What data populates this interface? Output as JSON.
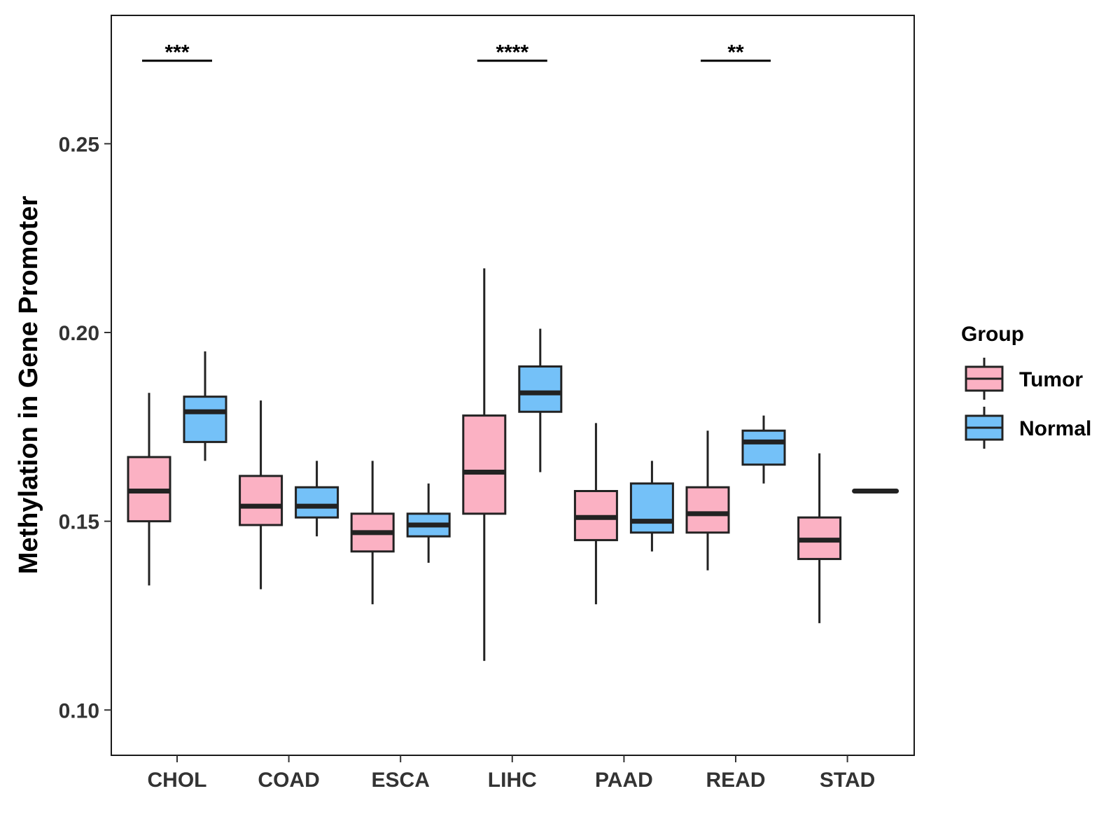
{
  "chart_data": {
    "type": "boxplot",
    "title": "",
    "xlabel": "",
    "ylabel": "Methylation in Gene Promoter",
    "ylim": [
      0.088,
      0.284
    ],
    "yticks": [
      "0.10",
      "0.15",
      "0.20",
      "0.25"
    ],
    "categories": [
      "CHOL",
      "COAD",
      "ESCA",
      "LIHC",
      "PAAD",
      "READ",
      "STAD"
    ],
    "legend": {
      "title": "Group",
      "entries": [
        "Tumor",
        "Normal"
      ],
      "position": "right"
    },
    "colors": {
      "Tumor": "#fbb1c3",
      "Normal": "#74c1f8",
      "stroke": "#222222"
    },
    "series": [
      {
        "name": "Tumor",
        "boxes": [
          {
            "min": 0.133,
            "q1": 0.15,
            "median": 0.158,
            "q3": 0.167,
            "max": 0.184
          },
          {
            "min": 0.132,
            "q1": 0.149,
            "median": 0.154,
            "q3": 0.162,
            "max": 0.182
          },
          {
            "min": 0.128,
            "q1": 0.142,
            "median": 0.147,
            "q3": 0.152,
            "max": 0.166
          },
          {
            "min": 0.113,
            "q1": 0.152,
            "median": 0.163,
            "q3": 0.178,
            "max": 0.217
          },
          {
            "min": 0.128,
            "q1": 0.145,
            "median": 0.151,
            "q3": 0.158,
            "max": 0.176
          },
          {
            "min": 0.137,
            "q1": 0.147,
            "median": 0.152,
            "q3": 0.159,
            "max": 0.174
          },
          {
            "min": 0.123,
            "q1": 0.14,
            "median": 0.145,
            "q3": 0.151,
            "max": 0.168
          }
        ]
      },
      {
        "name": "Normal",
        "boxes": [
          {
            "min": 0.166,
            "q1": 0.171,
            "median": 0.179,
            "q3": 0.183,
            "max": 0.195
          },
          {
            "min": 0.146,
            "q1": 0.151,
            "median": 0.154,
            "q3": 0.159,
            "max": 0.166
          },
          {
            "min": 0.139,
            "q1": 0.146,
            "median": 0.149,
            "q3": 0.152,
            "max": 0.16
          },
          {
            "min": 0.163,
            "q1": 0.179,
            "median": 0.184,
            "q3": 0.191,
            "max": 0.201
          },
          {
            "min": 0.142,
            "q1": 0.147,
            "median": 0.15,
            "q3": 0.16,
            "max": 0.166
          },
          {
            "min": 0.16,
            "q1": 0.165,
            "median": 0.171,
            "q3": 0.174,
            "max": 0.178
          },
          {
            "min": 0.158,
            "q1": 0.158,
            "median": 0.158,
            "q3": 0.158,
            "max": 0.158
          }
        ]
      }
    ],
    "significance": [
      {
        "category": "CHOL",
        "label": "***",
        "y": 0.272
      },
      {
        "category": "LIHC",
        "label": "****",
        "y": 0.272
      },
      {
        "category": "READ",
        "label": "**",
        "y": 0.272
      }
    ]
  }
}
